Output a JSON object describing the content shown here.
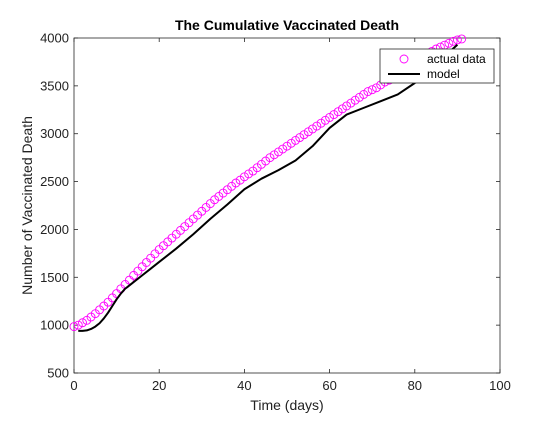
{
  "chart_data": {
    "type": "line",
    "title": "The Cumulative Vaccinated Death",
    "xlabel": "Time (days)",
    "ylabel": "Number of Vaccinated Death",
    "xlim": [
      0,
      100
    ],
    "ylim": [
      500,
      4000
    ],
    "xticks": [
      0,
      20,
      40,
      60,
      80,
      100
    ],
    "yticks": [
      500,
      1000,
      1500,
      2000,
      2500,
      3000,
      3500,
      4000
    ],
    "grid": false,
    "legend_location": "top-right",
    "series": [
      {
        "name": "actual data",
        "style": "markers",
        "marker": "circle",
        "color": "#ff00ff",
        "x": [
          0,
          1,
          2,
          3,
          4,
          5,
          6,
          7,
          8,
          9,
          10,
          11,
          12,
          13,
          14,
          15,
          16,
          17,
          18,
          19,
          20,
          21,
          22,
          23,
          24,
          25,
          26,
          27,
          28,
          29,
          30,
          31,
          32,
          33,
          34,
          35,
          36,
          37,
          38,
          39,
          40,
          41,
          42,
          43,
          44,
          45,
          46,
          47,
          48,
          49,
          50,
          51,
          52,
          53,
          54,
          55,
          56,
          57,
          58,
          59,
          60,
          61,
          62,
          63,
          64,
          65,
          66,
          67,
          68,
          69,
          70,
          71,
          72,
          73,
          74,
          75,
          76,
          77,
          78,
          79,
          80,
          81,
          82,
          83,
          84,
          85,
          86,
          87,
          88,
          89,
          90,
          91
        ],
        "y": [
          985,
          1000,
          1025,
          1050,
          1085,
          1120,
          1160,
          1200,
          1240,
          1285,
          1330,
          1380,
          1425,
          1470,
          1520,
          1565,
          1610,
          1655,
          1700,
          1745,
          1790,
          1830,
          1870,
          1910,
          1950,
          1990,
          2030,
          2070,
          2110,
          2150,
          2190,
          2230,
          2270,
          2310,
          2345,
          2380,
          2415,
          2450,
          2485,
          2515,
          2550,
          2580,
          2610,
          2645,
          2680,
          2715,
          2750,
          2780,
          2810,
          2840,
          2870,
          2900,
          2930,
          2960,
          2990,
          3020,
          3050,
          3080,
          3110,
          3140,
          3170,
          3200,
          3230,
          3260,
          3290,
          3320,
          3350,
          3380,
          3410,
          3440,
          3460,
          3480,
          3510,
          3540,
          3560,
          3590,
          3620,
          3650,
          3680,
          3710,
          3740,
          3770,
          3800,
          3830,
          3860,
          3885,
          3905,
          3925,
          3945,
          3965,
          3980,
          3990
        ]
      },
      {
        "name": "model",
        "style": "line",
        "color": "#000000",
        "x": [
          1,
          2,
          3,
          4,
          5,
          6,
          7,
          8,
          9,
          10,
          11,
          12,
          14,
          16,
          18,
          20,
          24,
          28,
          32,
          36,
          40,
          44,
          48,
          52,
          56,
          60,
          64,
          68,
          72,
          76,
          80,
          84,
          88,
          90
        ],
        "y": [
          940,
          940,
          945,
          960,
          985,
          1020,
          1070,
          1130,
          1200,
          1270,
          1330,
          1380,
          1450,
          1520,
          1590,
          1660,
          1800,
          1950,
          2110,
          2260,
          2420,
          2530,
          2620,
          2720,
          2870,
          3060,
          3200,
          3270,
          3340,
          3410,
          3530,
          3670,
          3850,
          3930
        ]
      }
    ]
  }
}
